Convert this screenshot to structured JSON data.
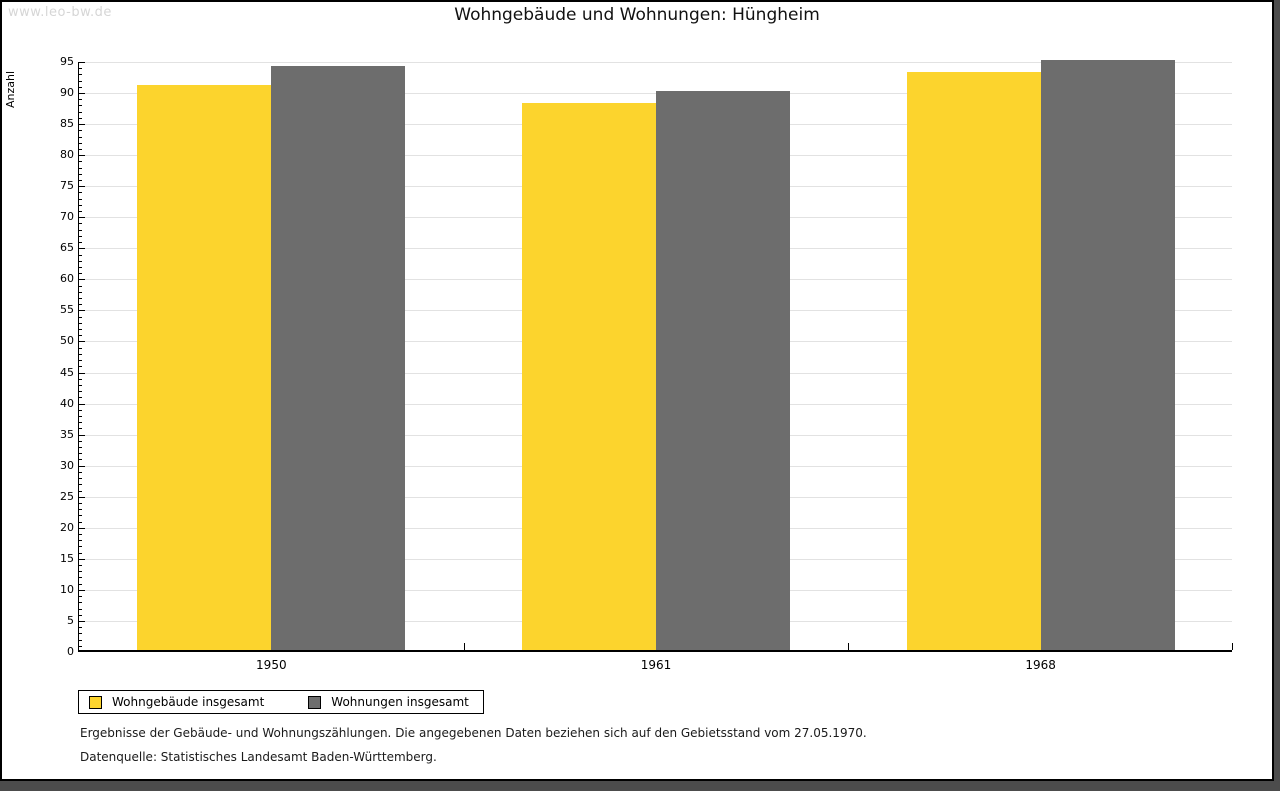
{
  "page": {
    "watermark": "www.leo-bw.de",
    "title": "Wohngebäude und Wohnungen: Hüngheim",
    "footnote_line1": "Ergebnisse der Gebäude- und Wohnungszählungen. Die angegebenen Daten beziehen sich auf den Gebietsstand vom 27.05.1970.",
    "footnote_line2": "Datenquelle: Statistisches Landesamt Baden-Württemberg."
  },
  "colors": {
    "series1": "#fcd42d",
    "series2": "#6d6d6d",
    "gridline": "#e2e2e2",
    "axis": "#000000",
    "watermark": "#d6d6d6",
    "page_shadow": "#4c4c4c"
  },
  "chart_data": {
    "type": "bar",
    "title": "Wohngebäude und Wohnungen: Hüngheim",
    "xlabel": "",
    "ylabel": "Anzahl",
    "categories": [
      "1950",
      "1961",
      "1968"
    ],
    "series": [
      {
        "name": "Wohngebäude insgesamt",
        "color": "#fcd42d",
        "values": [
          91,
          88,
          93
        ]
      },
      {
        "name": "Wohnungen insgesamt",
        "color": "#6d6d6d",
        "values": [
          94,
          90,
          95
        ]
      }
    ],
    "ylim": [
      0,
      95
    ],
    "ytick_step": 5,
    "yminor_step": 1,
    "grid": true,
    "legend_position": "bottom-left"
  }
}
